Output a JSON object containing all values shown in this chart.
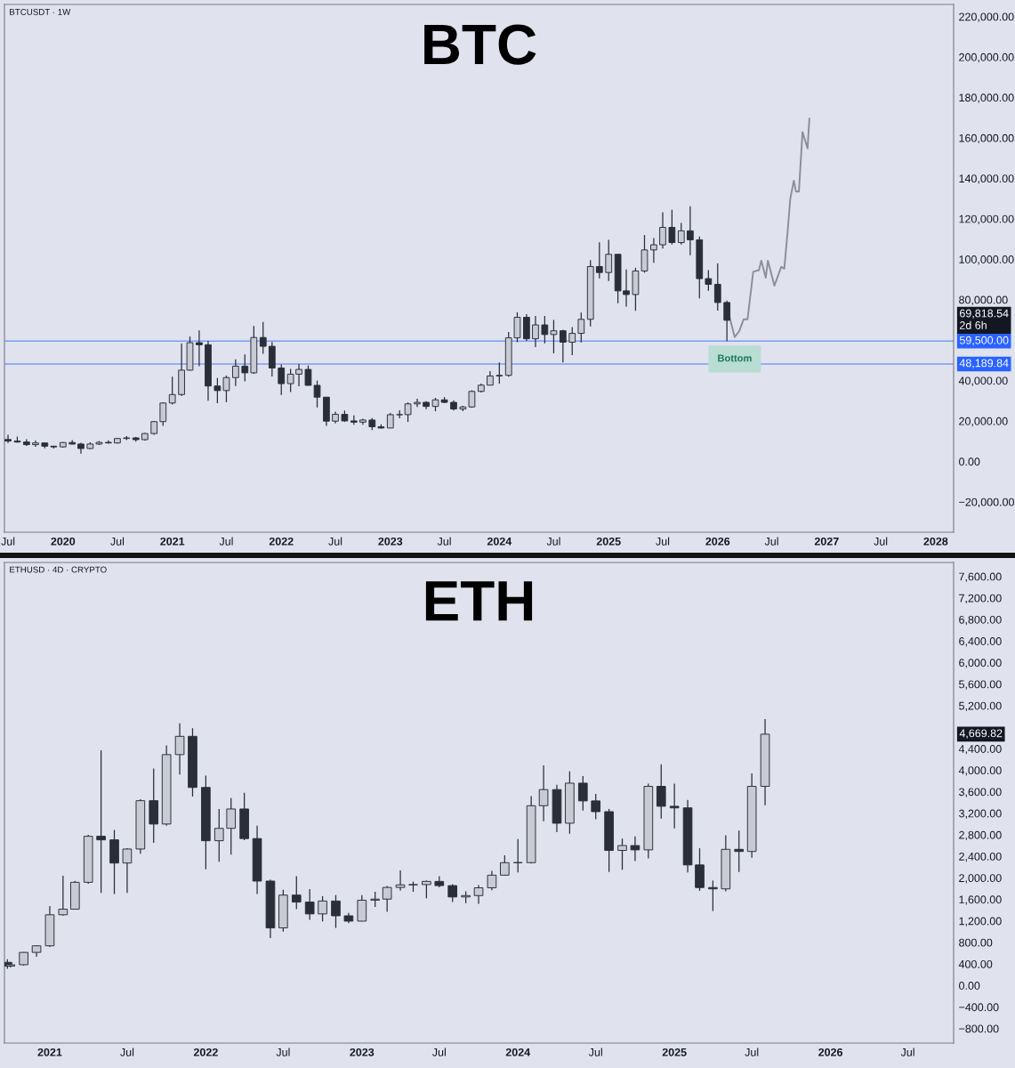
{
  "chart_data": [
    {
      "type": "candlestick",
      "title": "BTC",
      "annotations": [
        "BTCUSDT · 1W",
        "69,818.54\n2d 6h",
        {
          "text": "Bottom",
          "x": "2026-02-27",
          "y": 61500
        }
      ],
      "series": [
        {
          "color": "#2a2e39",
          "x": [
            "2019-07",
            "2019-08",
            "2019-09",
            "2019-10",
            "2019-11",
            "2019-12",
            "2020-01",
            "2020-02",
            "2020-03",
            "2020-04",
            "2020-05",
            "2020-06",
            "2020-07",
            "2020-08",
            "2020-09",
            "2020-10",
            "2020-11",
            "2020-12",
            "2021-01",
            "2021-02",
            "2021-03",
            "2021-04",
            "2021-05",
            "2021-06",
            "2021-07",
            "2021-08",
            "2021-09",
            "2021-10",
            "2021-11",
            "2021-12",
            "2022-01",
            "2022-02",
            "2022-03",
            "2022-04",
            "2022-05",
            "2022-06",
            "2022-07",
            "2022-08",
            "2022-09",
            "2022-10",
            "2022-11",
            "2022-12",
            "2023-01",
            "2023-02",
            "2023-03",
            "2023-04",
            "2023-05",
            "2023-06",
            "2023-07",
            "2023-08",
            "2023-09",
            "2023-10",
            "2023-11",
            "2023-12",
            "2024-01",
            "2024-02",
            "2024-03",
            "2024-04",
            "2024-05",
            "2024-06",
            "2024-07",
            "2024-08",
            "2024-09",
            "2024-10",
            "2024-11",
            "2024-12",
            "2025-01",
            "2025-02",
            "2025-03",
            "2025-04",
            "2025-05",
            "2025-06",
            "2025-07",
            "2025-08",
            "2025-09",
            "2025-10",
            "2025-11",
            "2025-12",
            "2026-01",
            "2026-02"
          ],
          "ohlc": [
            [
              10850,
              13200,
              9100,
              10080
            ],
            [
              10080,
              12300,
              9300,
              9600
            ],
            [
              9600,
              10950,
              7700,
              8300
            ],
            [
              8300,
              10350,
              7300,
              9150
            ],
            [
              9150,
              9500,
              6500,
              7550
            ],
            [
              7550,
              7750,
              6430,
              7200
            ],
            [
              7200,
              9580,
              6850,
              9350
            ],
            [
              9350,
              10500,
              8450,
              8600
            ],
            [
              8600,
              9200,
              3800,
              6400
            ],
            [
              6400,
              9450,
              6150,
              8620
            ],
            [
              8620,
              10080,
              8100,
              9450
            ],
            [
              9450,
              10400,
              8900,
              9140
            ],
            [
              9140,
              11450,
              8900,
              11350
            ],
            [
              11350,
              12480,
              10500,
              11650
            ],
            [
              11650,
              12070,
              9800,
              10780
            ],
            [
              10780,
              14100,
              10370,
              13800
            ],
            [
              13800,
              19900,
              13200,
              19700
            ],
            [
              19700,
              29300,
              17570,
              28900
            ],
            [
              28900,
              41950,
              28130,
              33100
            ],
            [
              33100,
              58350,
              32300,
              45140
            ],
            [
              45140,
              61780,
              44950,
              58740
            ],
            [
              58740,
              64850,
              47050,
              57700
            ],
            [
              57700,
              59600,
              30000,
              37300
            ],
            [
              37300,
              41300,
              28800,
              35050
            ],
            [
              35050,
              42450,
              29300,
              41460
            ],
            [
              41460,
              50500,
              37300,
              47100
            ],
            [
              47100,
              52950,
              39600,
              43820
            ],
            [
              43820,
              67000,
              43290,
              61300
            ],
            [
              61300,
              69000,
              53250,
              56950
            ],
            [
              56950,
              59050,
              42000,
              46200
            ],
            [
              46200,
              47990,
              32900,
              38480
            ],
            [
              38480,
              45800,
              34300,
              43160
            ],
            [
              43160,
              48190,
              37150,
              45510
            ],
            [
              45510,
              47450,
              37500,
              37630
            ],
            [
              37630,
              40000,
              26700,
              31800
            ],
            [
              31800,
              31950,
              17600,
              19940
            ],
            [
              19940,
              24670,
              18780,
              23300
            ],
            [
              23300,
              25200,
              19550,
              20050
            ],
            [
              20050,
              22800,
              18150,
              19420
            ],
            [
              19420,
              21100,
              18200,
              20490
            ],
            [
              20490,
              21450,
              15480,
              17160
            ],
            [
              17160,
              18400,
              16250,
              16540
            ],
            [
              16540,
              23950,
              16500,
              23120
            ],
            [
              23120,
              25250,
              21350,
              23140
            ],
            [
              23140,
              29200,
              19550,
              28470
            ],
            [
              28470,
              31000,
              26940,
              29230
            ],
            [
              29230,
              29820,
              25800,
              27210
            ],
            [
              27210,
              31430,
              24800,
              30470
            ],
            [
              30470,
              31800,
              28860,
              29230
            ],
            [
              29230,
              30200,
              25160,
              25940
            ],
            [
              25940,
              27500,
              24900,
              26960
            ],
            [
              26960,
              35200,
              26550,
              34640
            ],
            [
              34640,
              38450,
              34100,
              37720
            ],
            [
              37720,
              44700,
              37600,
              42280
            ],
            [
              42280,
              48970,
              38550,
              42580
            ],
            [
              42580,
              64000,
              41880,
              61130
            ],
            [
              61130,
              73800,
              59000,
              71280
            ],
            [
              71280,
              72800,
              59600,
              60670
            ],
            [
              60670,
              71950,
              56550,
              67520
            ],
            [
              67520,
              72000,
              58400,
              62770
            ],
            [
              62770,
              70000,
              53500,
              64620
            ],
            [
              64620,
              65100,
              49000,
              58970
            ],
            [
              58970,
              66500,
              52550,
              63330
            ],
            [
              63330,
              73620,
              58900,
              70290
            ],
            [
              70290,
              99590,
              66800,
              96400
            ],
            [
              96400,
              108350,
              90500,
              93430
            ],
            [
              93430,
              109590,
              89250,
              102430
            ],
            [
              102430,
              102500,
              78250,
              84350
            ],
            [
              84350,
              95000,
              76600,
              82550
            ],
            [
              82550,
              95750,
              74500,
              94200
            ],
            [
              94200,
              111980,
              93350,
              104600
            ],
            [
              104600,
              110500,
              98200,
              107140
            ],
            [
              107140,
              123200,
              105250,
              115750
            ],
            [
              115750,
              124450,
              107300,
              108250
            ],
            [
              108250,
              117900,
              107250,
              114050
            ],
            [
              114050,
              126200,
              102000,
              109600
            ],
            [
              109600,
              111200,
              80600,
              90400
            ],
            [
              90400,
              94600,
              84400,
              87600
            ],
            [
              87600,
              97900,
              74600,
              78600
            ],
            [
              78600,
              79500,
              59500,
              69818.54
            ]
          ]
        },
        {
          "type": "line",
          "color": "#8c8f99",
          "x": [
            "2026-02-08",
            "2026-02-27",
            "2026-03-14",
            "2026-03-29",
            "2026-04-11",
            "2026-04-30",
            "2026-05-19",
            "2026-05-27",
            "2026-06-11",
            "2026-06-18",
            "2026-07-10",
            "2026-08-02",
            "2026-08-12",
            "2026-08-24",
            "2026-09-01",
            "2026-09-13",
            "2026-09-20",
            "2026-09-30",
            "2026-10-12",
            "2026-10-29",
            "2026-11-04"
          ],
          "values": [
            72500,
            61500,
            64400,
            70300,
            70300,
            93800,
            94600,
            99300,
            90900,
            99300,
            86900,
            96300,
            95300,
            115000,
            129800,
            138900,
            133500,
            133500,
            162900,
            154800,
            169500
          ]
        }
      ],
      "ref_lines": [
        {
          "axis": "y",
          "value": 59500,
          "label": "59,500.00",
          "color": "#2962ff"
        },
        {
          "axis": "y",
          "value": 48189.84,
          "label": "48,189.84",
          "color": "#2962ff"
        }
      ],
      "xlim": [
        "2019-06-19",
        "2028-03-01"
      ],
      "xticks": [
        {
          "value": "2019-07",
          "label": "Jul"
        },
        {
          "value": "2020",
          "label": "2020"
        },
        {
          "value": "2020-07",
          "label": "Jul"
        },
        {
          "value": "2021",
          "label": "2021"
        },
        {
          "value": "2021-07",
          "label": "Jul"
        },
        {
          "value": "2022",
          "label": "2022"
        },
        {
          "value": "2022-07",
          "label": "Jul"
        },
        {
          "value": "2023",
          "label": "2023"
        },
        {
          "value": "2023-07",
          "label": "Jul"
        },
        {
          "value": "2024",
          "label": "2024"
        },
        {
          "value": "2024-07",
          "label": "Jul"
        },
        {
          "value": "2025",
          "label": "2025"
        },
        {
          "value": "2025-07",
          "label": "Jul"
        },
        {
          "value": "2026",
          "label": "2026"
        },
        {
          "value": "2026-07",
          "label": "Jul"
        },
        {
          "value": "2027",
          "label": "2027"
        },
        {
          "value": "2027-07",
          "label": "Jul"
        },
        {
          "value": "2028",
          "label": "2028"
        }
      ],
      "ylim": [
        -35000,
        226000
      ],
      "yticks": [
        {
          "value": -20000,
          "label": "−20,000.00"
        },
        {
          "value": 0,
          "label": "0.00"
        },
        {
          "value": 20000,
          "label": "20,000.00"
        },
        {
          "value": 40000,
          "label": "40,000.00"
        },
        {
          "value": 80000,
          "label": "80,000.00"
        },
        {
          "value": 100000,
          "label": "100,000.00"
        },
        {
          "value": 120000,
          "label": "120,000.00"
        },
        {
          "value": 140000,
          "label": "140,000.00"
        },
        {
          "value": 160000,
          "label": "160,000.00"
        },
        {
          "value": 180000,
          "label": "180,000.00"
        },
        {
          "value": 200000,
          "label": "200,000.00"
        },
        {
          "value": 220000,
          "label": "220,000.00"
        }
      ]
    },
    {
      "type": "candlestick",
      "title": "ETH",
      "annotations": [
        "ETHUSD · 4D · CRYPTO",
        "4,669.82"
      ],
      "series": [
        {
          "color": "#2a2e39",
          "x": [
            "2020-09-24",
            "2020-10",
            "2020-11",
            "2020-12",
            "2021-01",
            "2021-02",
            "2021-03",
            "2021-04",
            "2021-05",
            "2021-06",
            "2021-07",
            "2021-08",
            "2021-09",
            "2021-10",
            "2021-11",
            "2021-12",
            "2022-01",
            "2022-02",
            "2022-03",
            "2022-04",
            "2022-05",
            "2022-06",
            "2022-07",
            "2022-08",
            "2022-09",
            "2022-10",
            "2022-11",
            "2022-12",
            "2023-01",
            "2023-02",
            "2023-03",
            "2023-04",
            "2023-05",
            "2023-06",
            "2023-07",
            "2023-08",
            "2023-09",
            "2023-10",
            "2023-11",
            "2023-12",
            "2024-01",
            "2024-02",
            "2024-03",
            "2024-04",
            "2024-05",
            "2024-06",
            "2024-07",
            "2024-08",
            "2024-09",
            "2024-10",
            "2024-11",
            "2024-12",
            "2025-01",
            "2025-02",
            "2025-03",
            "2025-04",
            "2025-05",
            "2025-06",
            "2025-07",
            "2025-08"
          ],
          "ohlc": [
            [
              430,
              490,
              310,
              360
            ],
            [
              360,
              420,
              335,
              386
            ],
            [
              386,
              620,
              370,
              615
            ],
            [
              615,
              750,
              535,
              737
            ],
            [
              737,
              1475,
              714,
              1314
            ],
            [
              1314,
              2040,
              1300,
              1418
            ],
            [
              1418,
              1945,
              1410,
              1918
            ],
            [
              1918,
              2800,
              1890,
              2773
            ],
            [
              2773,
              4370,
              1720,
              2706
            ],
            [
              2706,
              2890,
              1700,
              2275
            ],
            [
              2275,
              2550,
              1720,
              2536
            ],
            [
              2536,
              3460,
              2450,
              3434
            ],
            [
              3434,
              4030,
              2650,
              3000
            ],
            [
              3000,
              4460,
              2970,
              4290
            ],
            [
              4290,
              4870,
              3920,
              4630
            ],
            [
              4630,
              4780,
              3510,
              3680
            ],
            [
              3680,
              3900,
              2160,
              2690
            ],
            [
              2690,
              3280,
              2300,
              2920
            ],
            [
              2920,
              3480,
              2430,
              3280
            ],
            [
              3280,
              3580,
              2700,
              2730
            ],
            [
              2730,
              2970,
              1700,
              1940
            ],
            [
              1940,
              1970,
              880,
              1070
            ],
            [
              1070,
              1780,
              1000,
              1680
            ],
            [
              1680,
              2030,
              1420,
              1550
            ],
            [
              1550,
              1790,
              1220,
              1330
            ],
            [
              1330,
              1660,
              1190,
              1570
            ],
            [
              1570,
              1680,
              1070,
              1295
            ],
            [
              1295,
              1350,
              1160,
              1196
            ],
            [
              1196,
              1680,
              1190,
              1585
            ],
            [
              1585,
              1740,
              1460,
              1605
            ],
            [
              1605,
              1850,
              1370,
              1822
            ],
            [
              1822,
              2140,
              1760,
              1870
            ],
            [
              1870,
              1930,
              1740,
              1875
            ],
            [
              1875,
              1950,
              1620,
              1934
            ],
            [
              1934,
              2030,
              1825,
              1856
            ],
            [
              1856,
              1880,
              1550,
              1645
            ],
            [
              1645,
              1750,
              1530,
              1671
            ],
            [
              1671,
              1865,
              1520,
              1815
            ],
            [
              1815,
              2130,
              1770,
              2050
            ],
            [
              2050,
              2420,
              2040,
              2282
            ],
            [
              2282,
              2720,
              2100,
              2283
            ],
            [
              2283,
              3520,
              2265,
              3340
            ],
            [
              3340,
              4090,
              3050,
              3640
            ],
            [
              3640,
              3730,
              2850,
              3015
            ],
            [
              3015,
              3980,
              2820,
              3760
            ],
            [
              3760,
              3890,
              3250,
              3430
            ],
            [
              3430,
              3560,
              3090,
              3230
            ],
            [
              3230,
              3280,
              2110,
              2510
            ],
            [
              2510,
              2730,
              2150,
              2600
            ],
            [
              2600,
              2770,
              2310,
              2520
            ],
            [
              2520,
              3750,
              2360,
              3700
            ],
            [
              3700,
              4110,
              3100,
              3330
            ],
            [
              3330,
              3750,
              2920,
              3300
            ],
            [
              3300,
              3450,
              2100,
              2240
            ],
            [
              2240,
              2550,
              1760,
              1820
            ],
            [
              1820,
              1950,
              1385,
              1795
            ],
            [
              1795,
              2790,
              1750,
              2530
            ],
            [
              2530,
              2880,
              2110,
              2490
            ],
            [
              2490,
              3940,
              2375,
              3700
            ],
            [
              3700,
              4950,
              3350,
              4669.82
            ]
          ]
        }
      ],
      "xlim": [
        "2020-09-17",
        "2026-10-16"
      ],
      "xticks": [
        {
          "value": "2021",
          "label": "2021"
        },
        {
          "value": "2021-07",
          "label": "Jul"
        },
        {
          "value": "2022",
          "label": "2022"
        },
        {
          "value": "2022-07",
          "label": "Jul"
        },
        {
          "value": "2023",
          "label": "2023"
        },
        {
          "value": "2023-07",
          "label": "Jul"
        },
        {
          "value": "2024",
          "label": "2024"
        },
        {
          "value": "2024-07",
          "label": "Jul"
        },
        {
          "value": "2025",
          "label": "2025"
        },
        {
          "value": "2025-07",
          "label": "Jul"
        },
        {
          "value": "2026",
          "label": "2026"
        },
        {
          "value": "2026-07",
          "label": "Jul"
        }
      ],
      "ylim": [
        -1070,
        7860
      ],
      "yticks": [
        {
          "value": -800,
          "label": "−800.00"
        },
        {
          "value": -400,
          "label": "−400.00"
        },
        {
          "value": 0,
          "label": "0.00"
        },
        {
          "value": 400,
          "label": "400.00"
        },
        {
          "value": 800,
          "label": "800.00"
        },
        {
          "value": 1200,
          "label": "1,200.00"
        },
        {
          "value": 1600,
          "label": "1,600.00"
        },
        {
          "value": 2000,
          "label": "2,000.00"
        },
        {
          "value": 2400,
          "label": "2,400.00"
        },
        {
          "value": 2800,
          "label": "2,800.00"
        },
        {
          "value": 3200,
          "label": "3,200.00"
        },
        {
          "value": 3600,
          "label": "3,600.00"
        },
        {
          "value": 4000,
          "label": "4,000.00"
        },
        {
          "value": 4400,
          "label": "4,400.00"
        },
        {
          "value": 5200,
          "label": "5,200.00"
        },
        {
          "value": 5600,
          "label": "5,600.00"
        },
        {
          "value": 6000,
          "label": "6,000.00"
        },
        {
          "value": 6400,
          "label": "6,400.00"
        },
        {
          "value": 6800,
          "label": "6,800.00"
        },
        {
          "value": 7200,
          "label": "7,200.00"
        },
        {
          "value": 7600,
          "label": "7,600.00"
        }
      ]
    }
  ]
}
